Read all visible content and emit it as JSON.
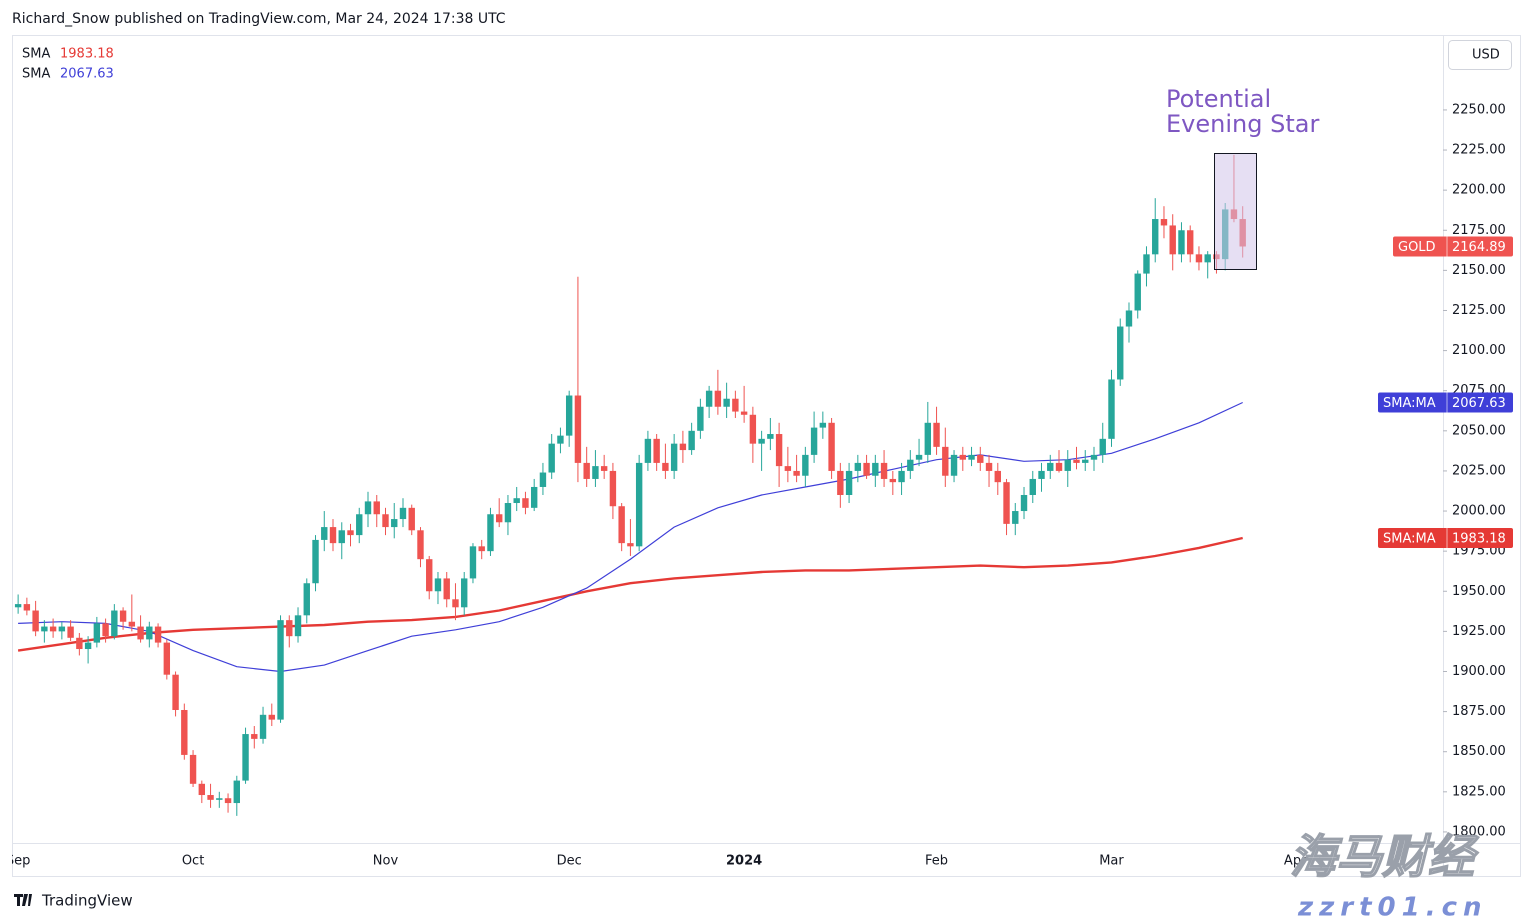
{
  "header": "Richard_Snow published on TradingView.com, Mar 24, 2024 17:38 UTC",
  "footer": "TradingView",
  "watermark": [
    "海马财经",
    "zzrt01.cn"
  ],
  "chart_data": {
    "type": "candlestick",
    "symbol": "GOLD",
    "currency": "USD",
    "annotation": [
      "Potential",
      "Evening Star"
    ],
    "up_color": "#26a69a",
    "down_color": "#ef5350",
    "open": [
      1940,
      1942,
      1938,
      1925,
      1928,
      1925,
      1928,
      1921,
      1914,
      1918,
      1930,
      1922,
      1938,
      1931,
      1928,
      1920,
      1928,
      1918,
      1898,
      1876,
      1848,
      1830,
      1823,
      1820,
      1821,
      1818,
      1832,
      1861,
      1858,
      1873,
      1870,
      1932,
      1922,
      1935,
      1955,
      1982,
      1990,
      1980,
      1988,
      1985,
      1998,
      2006,
      1998,
      1990,
      1995,
      2002,
      1988,
      1970,
      1950,
      1958,
      1945,
      1940,
      1958,
      1978,
      1975,
      1998,
      1993,
      2005,
      2008,
      2002,
      2015,
      2024,
      2042,
      2047,
      2072,
      2030,
      2020,
      2028,
      2025,
      2003,
      1980,
      1978,
      2030,
      2045,
      2030,
      2025,
      2042,
      2038,
      2050,
      2065,
      2075,
      2065,
      2070,
      2062,
      2060,
      2042,
      2045,
      2048,
      2028,
      2025,
      2022,
      2035,
      2052,
      2055,
      2025,
      2010,
      2025,
      2030,
      2022,
      2030,
      2020,
      2018,
      2025,
      2032,
      2035,
      2055,
      2040,
      2022,
      2035,
      2032,
      2035,
      2030,
      2025,
      2018,
      1992,
      2000,
      2010,
      2020,
      2025,
      2030,
      2025,
      2032,
      2030,
      2032,
      2035,
      2045,
      2082,
      2115,
      2125,
      2148,
      2160,
      2182,
      2178,
      2160,
      2175,
      2160,
      2155,
      2160,
      2157,
      2188,
      2182
    ],
    "high": [
      1948,
      1946,
      1944,
      1932,
      1933,
      1931,
      1932,
      1924,
      1922,
      1934,
      1933,
      1942,
      1940,
      1948,
      1935,
      1931,
      1930,
      1920,
      1900,
      1880,
      1851,
      1832,
      1830,
      1825,
      1824,
      1835,
      1865,
      1866,
      1878,
      1880,
      1935,
      1935,
      1940,
      1958,
      1985,
      2000,
      1995,
      1993,
      1992,
      2002,
      2012,
      2010,
      2002,
      2005,
      2008,
      2004,
      1990,
      1972,
      1962,
      1962,
      1955,
      1962,
      1980,
      1982,
      2002,
      2008,
      2010,
      2015,
      2012,
      2020,
      2030,
      2048,
      2052,
      2075,
      2146,
      2040,
      2038,
      2035,
      2030,
      2005,
      1995,
      2035,
      2050,
      2048,
      2042,
      2048,
      2050,
      2055,
      2070,
      2078,
      2088,
      2080,
      2075,
      2078,
      2065,
      2050,
      2058,
      2055,
      2040,
      2035,
      2040,
      2062,
      2062,
      2058,
      2030,
      2030,
      2035,
      2035,
      2035,
      2038,
      2025,
      2030,
      2038,
      2045,
      2068,
      2065,
      2052,
      2038,
      2040,
      2040,
      2040,
      2035,
      2030,
      2020,
      2005,
      2015,
      2025,
      2030,
      2035,
      2038,
      2038,
      2040,
      2038,
      2040,
      2055,
      2088,
      2120,
      2130,
      2150,
      2165,
      2195,
      2190,
      2185,
      2180,
      2178,
      2165,
      2162,
      2162,
      2192,
      2222,
      2190
    ],
    "low": [
      1936,
      1935,
      1922,
      1918,
      1921,
      1920,
      1919,
      1910,
      1905,
      1915,
      1918,
      1920,
      1926,
      1925,
      1918,
      1915,
      1915,
      1895,
      1872,
      1845,
      1828,
      1818,
      1815,
      1815,
      1812,
      1810,
      1830,
      1852,
      1855,
      1866,
      1868,
      1915,
      1918,
      1930,
      1950,
      1975,
      1975,
      1970,
      1978,
      1980,
      1990,
      1990,
      1985,
      1983,
      1990,
      1985,
      1965,
      1945,
      1942,
      1940,
      1932,
      1935,
      1955,
      1970,
      1972,
      1990,
      1985,
      2000,
      1998,
      2000,
      2010,
      2020,
      2036,
      2040,
      2018,
      2015,
      2015,
      2020,
      1995,
      1975,
      1972,
      1975,
      2025,
      2025,
      2020,
      2020,
      2030,
      2035,
      2045,
      2058,
      2060,
      2058,
      2058,
      2055,
      2030,
      2025,
      2038,
      2015,
      2018,
      2018,
      2015,
      2030,
      2045,
      2020,
      2002,
      2005,
      2018,
      2020,
      2015,
      2015,
      2010,
      2010,
      2020,
      2028,
      2030,
      2035,
      2015,
      2018,
      2025,
      2028,
      2025,
      2015,
      2010,
      1985,
      1985,
      1995,
      2005,
      2012,
      2020,
      2024,
      2015,
      2026,
      2025,
      2025,
      2030,
      2040,
      2078,
      2105,
      2120,
      2140,
      2155,
      2170,
      2150,
      2155,
      2155,
      2150,
      2145,
      2148,
      2150,
      2180,
      2158
    ],
    "close": [
      1942,
      1938,
      1925,
      1928,
      1925,
      1928,
      1921,
      1914,
      1918,
      1930,
      1922,
      1938,
      1931,
      1928,
      1920,
      1928,
      1918,
      1898,
      1876,
      1848,
      1830,
      1823,
      1820,
      1821,
      1818,
      1832,
      1861,
      1858,
      1873,
      1870,
      1932,
      1922,
      1935,
      1955,
      1982,
      1990,
      1980,
      1988,
      1985,
      1998,
      2006,
      1998,
      1990,
      1995,
      2002,
      1988,
      1970,
      1950,
      1958,
      1945,
      1940,
      1958,
      1978,
      1975,
      1998,
      1993,
      2005,
      2008,
      2002,
      2015,
      2024,
      2042,
      2047,
      2072,
      2030,
      2020,
      2028,
      2025,
      2003,
      1980,
      1978,
      2030,
      2045,
      2030,
      2025,
      2042,
      2038,
      2050,
      2065,
      2075,
      2065,
      2070,
      2062,
      2060,
      2042,
      2045,
      2048,
      2028,
      2025,
      2022,
      2035,
      2052,
      2055,
      2025,
      2010,
      2025,
      2030,
      2022,
      2030,
      2020,
      2018,
      2025,
      2032,
      2035,
      2055,
      2040,
      2022,
      2035,
      2032,
      2035,
      2030,
      2025,
      2018,
      1992,
      2000,
      2010,
      2020,
      2025,
      2030,
      2025,
      2032,
      2030,
      2032,
      2035,
      2045,
      2082,
      2115,
      2125,
      2148,
      2160,
      2182,
      2178,
      2160,
      2175,
      2160,
      2155,
      2160,
      2157,
      2188,
      2182,
      2164.89
    ],
    "series": [
      {
        "name": "SMA",
        "tag": "SMA:MA",
        "color": "#e53935",
        "x": [
          0,
          5,
          10,
          15,
          20,
          25,
          30,
          35,
          40,
          45,
          50,
          55,
          60,
          65,
          70,
          75,
          80,
          85,
          90,
          95,
          100,
          105,
          110,
          115,
          120,
          125,
          130,
          135,
          140
        ],
        "values": [
          1913,
          1917,
          1921,
          1924,
          1926,
          1927,
          1928,
          1929,
          1931,
          1932,
          1934,
          1938,
          1944,
          1950,
          1955,
          1958,
          1960,
          1962,
          1963,
          1963,
          1964,
          1965,
          1966,
          1965,
          1966,
          1968,
          1972,
          1977,
          1983.18
        ]
      },
      {
        "name": "SMA",
        "tag": "SMA:MA",
        "color": "#3f3fd8",
        "x": [
          0,
          5,
          10,
          15,
          20,
          25,
          30,
          35,
          40,
          45,
          50,
          55,
          60,
          65,
          70,
          75,
          80,
          85,
          90,
          95,
          100,
          105,
          110,
          115,
          120,
          125,
          130,
          135,
          140
        ],
        "values": [
          1930,
          1931,
          1930,
          1925,
          1913,
          1903,
          1900,
          1904,
          1913,
          1922,
          1926,
          1931,
          1940,
          1952,
          1970,
          1990,
          2002,
          2010,
          2015,
          2020,
          2026,
          2032,
          2035,
          2031,
          2032,
          2036,
          2045,
          2055,
          2067.63
        ]
      }
    ],
    "xlim": [
      -0.7,
      162.9
    ],
    "xticks": [
      {
        "value": 0,
        "label": "Sep"
      },
      {
        "value": 20,
        "label": "Oct"
      },
      {
        "value": 42,
        "label": "Nov"
      },
      {
        "value": 63,
        "label": "Dec"
      },
      {
        "value": 83,
        "label": "2024"
      },
      {
        "value": 105,
        "label": "Feb"
      },
      {
        "value": 125,
        "label": "Mar"
      },
      {
        "value": 146,
        "label": "Apr"
      }
    ],
    "ylim": [
      1793.1,
      2296.7
    ],
    "yticks": [
      {
        "value": 1800,
        "label": "1800.00"
      },
      {
        "value": 1825,
        "label": "1825.00"
      },
      {
        "value": 1850,
        "label": "1850.00"
      },
      {
        "value": 1875,
        "label": "1875.00"
      },
      {
        "value": 1900,
        "label": "1900.00"
      },
      {
        "value": 1925,
        "label": "1925.00"
      },
      {
        "value": 1950,
        "label": "1950.00"
      },
      {
        "value": 1975,
        "label": "1975.00"
      },
      {
        "value": 2000,
        "label": "2000.00"
      },
      {
        "value": 2025,
        "label": "2025.00"
      },
      {
        "value": 2050,
        "label": "2050.00"
      },
      {
        "value": 2075,
        "label": "2075.00"
      },
      {
        "value": 2100,
        "label": "2100.00"
      },
      {
        "value": 2125,
        "label": "2125.00"
      },
      {
        "value": 2150,
        "label": "2150.00"
      },
      {
        "value": 2175,
        "label": "2175.00"
      },
      {
        "value": 2200,
        "label": "2200.00"
      },
      {
        "value": 2225,
        "label": "2225.00"
      },
      {
        "value": 2250,
        "label": "2250.00"
      }
    ],
    "grid": false
  }
}
